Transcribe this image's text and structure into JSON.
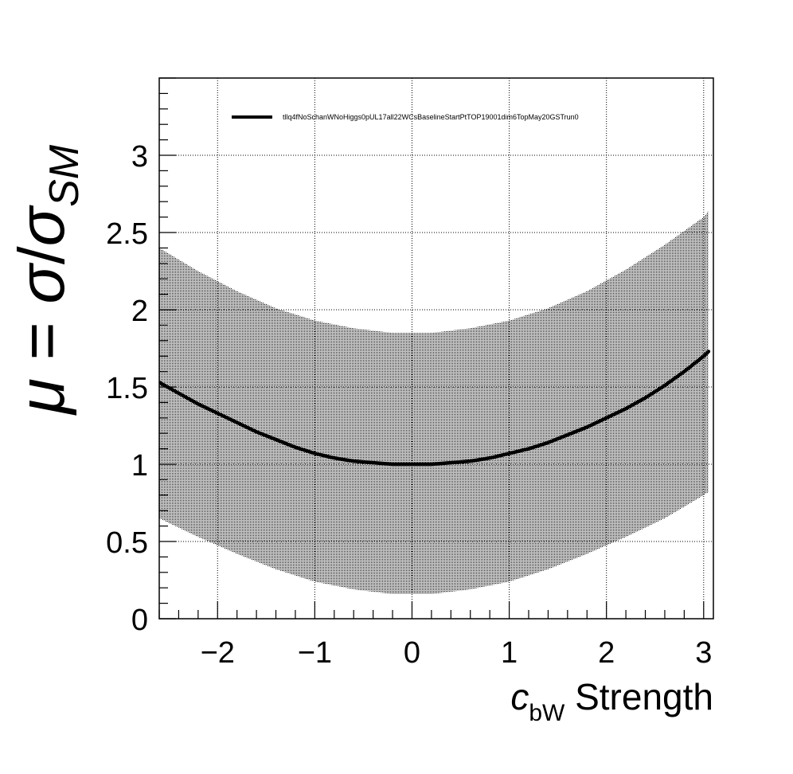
{
  "chart_data": {
    "type": "line",
    "xlim": [
      -2.6,
      3.1
    ],
    "ylim": [
      0,
      3.5
    ],
    "x_ticks": [
      -2,
      -1,
      0,
      1,
      2,
      3
    ],
    "x_tick_labels": [
      "−2",
      "−1",
      "0",
      "1",
      "2",
      "3"
    ],
    "y_ticks": [
      0,
      0.5,
      1,
      1.5,
      2,
      2.5,
      3
    ],
    "y_tick_labels": [
      "0",
      "0.5",
      "1",
      "1.5",
      "2",
      "2.5",
      "3"
    ],
    "grid": true,
    "legend_position": "top",
    "xlabel": {
      "italic": "c",
      "sub": "bW",
      "rest": " Strength"
    },
    "ylabel": {
      "mu": "μ",
      "eq": " = ",
      "sigma": "σ",
      "slash": "/",
      "sigma2": "σ",
      "sub": "SM"
    },
    "series": [
      {
        "name": "tllq4fNoSchanWNoHiggs0pUL17all22WCsBaselineStartPtTOP19001dim6TopMay20GSTrun0",
        "color": "#000000",
        "x": [
          -2.6,
          -2.4,
          -2.2,
          -2.0,
          -1.8,
          -1.6,
          -1.4,
          -1.2,
          -1.0,
          -0.8,
          -0.6,
          -0.4,
          -0.2,
          0.0,
          0.2,
          0.4,
          0.6,
          0.8,
          1.0,
          1.2,
          1.4,
          1.6,
          1.8,
          2.0,
          2.2,
          2.4,
          2.6,
          2.8,
          3.0,
          3.05
        ],
        "y": [
          1.53,
          1.46,
          1.39,
          1.33,
          1.27,
          1.21,
          1.16,
          1.11,
          1.07,
          1.04,
          1.02,
          1.01,
          1.0,
          1.0,
          1.0,
          1.01,
          1.02,
          1.04,
          1.07,
          1.1,
          1.14,
          1.19,
          1.24,
          1.3,
          1.36,
          1.43,
          1.51,
          1.6,
          1.7,
          1.73
        ]
      }
    ],
    "band": {
      "color": "#000000",
      "x": [
        -2.6,
        -2.2,
        -1.8,
        -1.4,
        -1.0,
        -0.6,
        -0.2,
        0.0,
        0.2,
        0.6,
        1.0,
        1.4,
        1.8,
        2.2,
        2.6,
        3.0,
        3.05
      ],
      "upper": [
        2.4,
        2.25,
        2.12,
        2.01,
        1.93,
        1.88,
        1.85,
        1.85,
        1.85,
        1.88,
        1.93,
        2.01,
        2.12,
        2.26,
        2.42,
        2.6,
        2.64
      ],
      "lower": [
        0.65,
        0.53,
        0.42,
        0.32,
        0.24,
        0.19,
        0.16,
        0.16,
        0.16,
        0.19,
        0.24,
        0.32,
        0.42,
        0.53,
        0.65,
        0.8,
        0.82
      ]
    }
  }
}
